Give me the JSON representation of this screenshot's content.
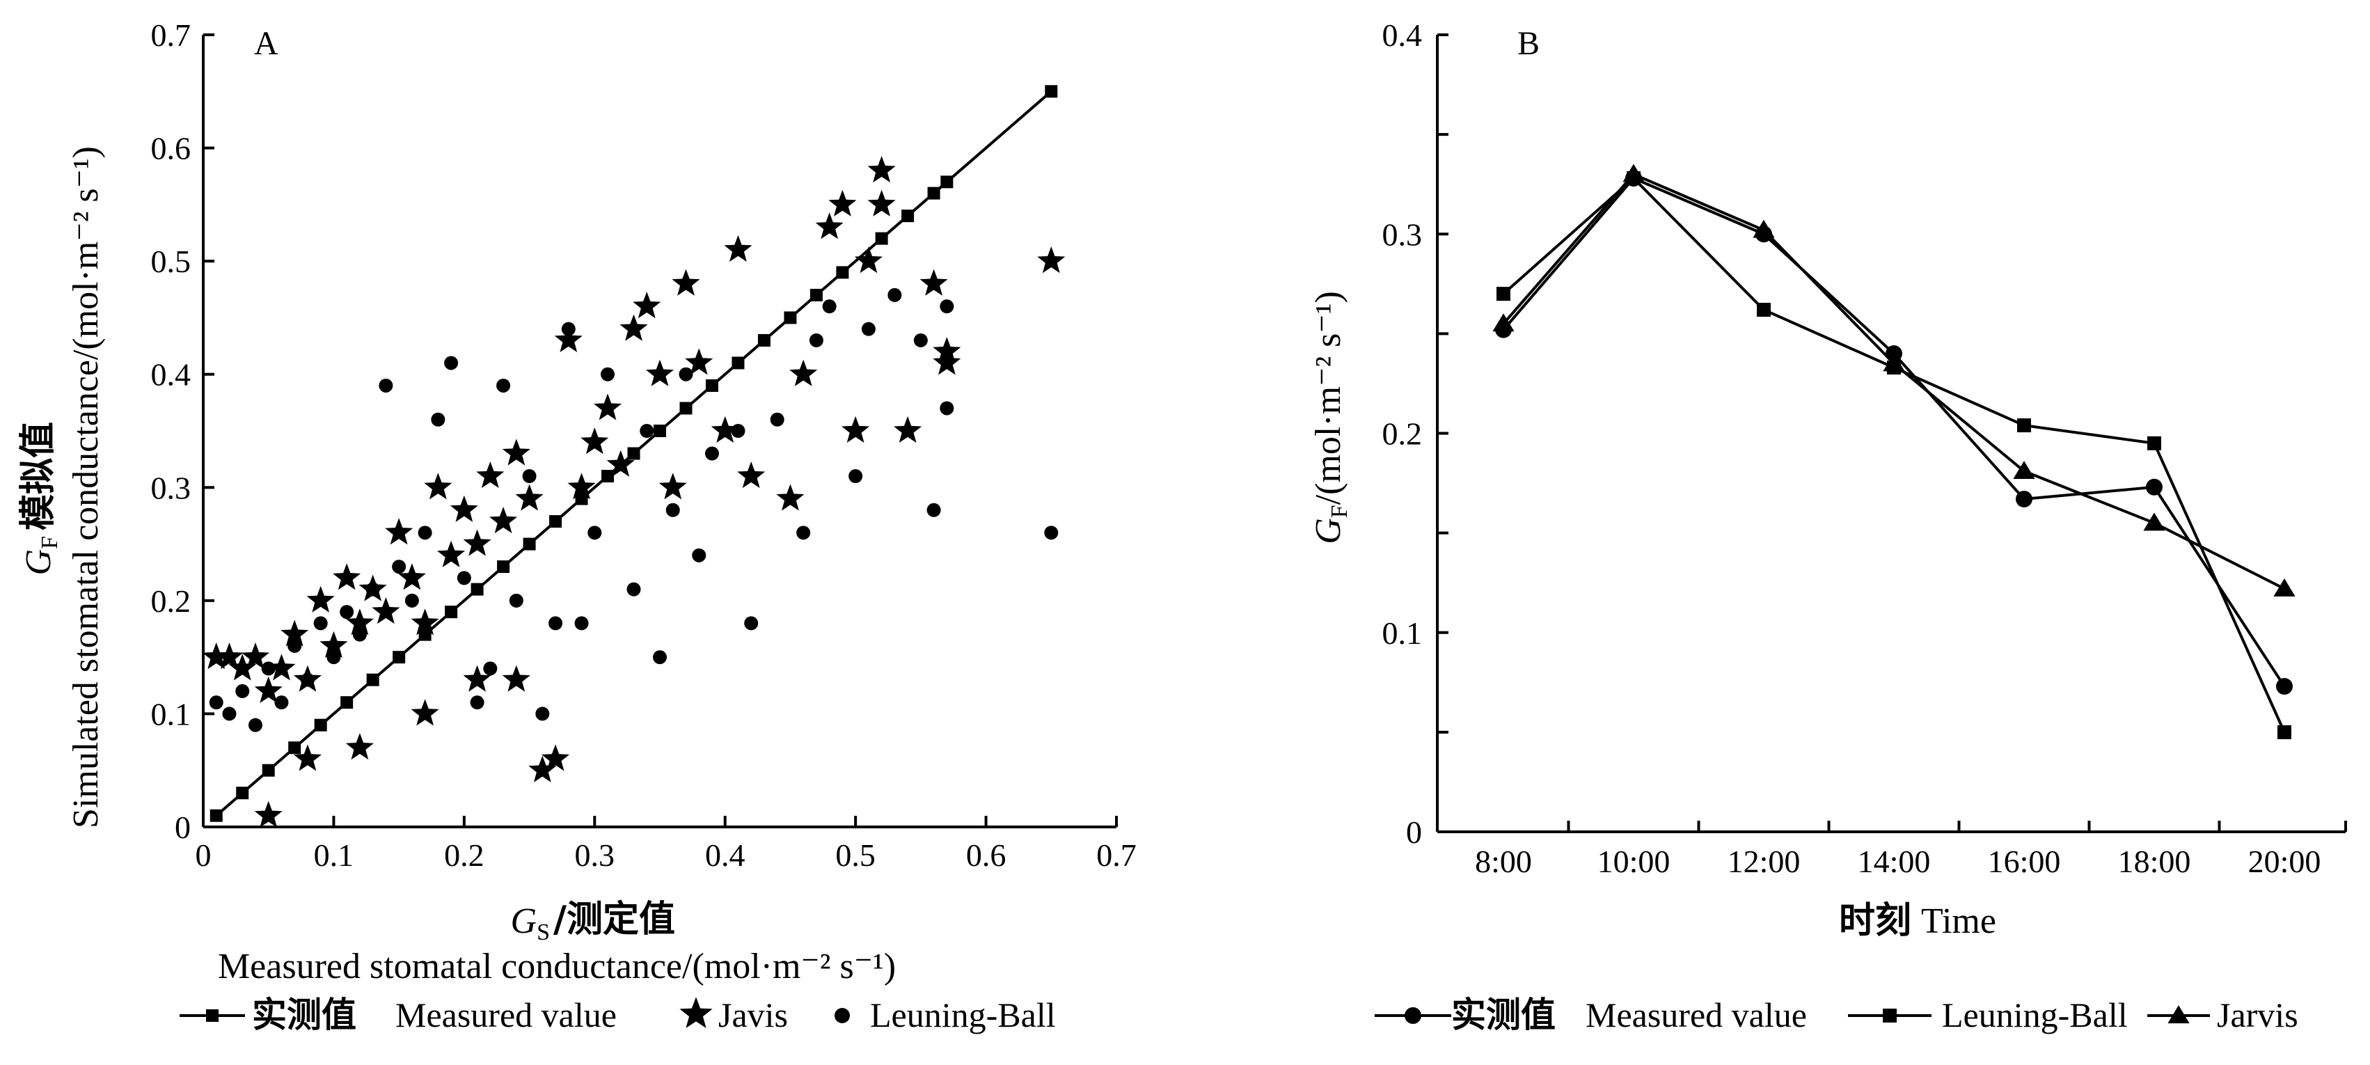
{
  "chart_data": [
    {
      "panel": "A",
      "type": "scatter",
      "title": "",
      "xlabel_symbol": "G",
      "xlabel_sub": "S",
      "xlabel_cn": "/测定值",
      "xlabel_en": "Measured stomatal conductance/(mol·m⁻² s⁻¹)",
      "ylabel_symbol": "G",
      "ylabel_sub": "F",
      "ylabel_cn": "模拟值",
      "ylabel_en": "Simulated stomatal conductance/(mol·m⁻² s⁻¹)",
      "xlim": [
        0,
        0.7
      ],
      "ylim": [
        0,
        0.7
      ],
      "xticks": [
        0,
        0.1,
        0.2,
        0.3,
        0.4,
        0.5,
        0.6,
        0.7
      ],
      "xtick_labels": [
        "0",
        "0.1",
        "0.2",
        "0.3",
        "0.4",
        "0.5",
        "0.6",
        "0.7"
      ],
      "yticks": [
        0,
        0.1,
        0.2,
        0.3,
        0.4,
        0.5,
        0.6,
        0.7
      ],
      "ytick_labels": [
        "0",
        "0.1",
        "0.2",
        "0.3",
        "0.4",
        "0.5",
        "0.6",
        "0.7"
      ],
      "series": [
        {
          "name": "实测值 Measured value",
          "legend_cn": "实测值",
          "legend_en": "Measured value",
          "marker": "square",
          "line": true,
          "points": [
            [
              0.01,
              0.01
            ],
            [
              0.03,
              0.03
            ],
            [
              0.05,
              0.05
            ],
            [
              0.07,
              0.07
            ],
            [
              0.09,
              0.09
            ],
            [
              0.11,
              0.11
            ],
            [
              0.13,
              0.13
            ],
            [
              0.15,
              0.15
            ],
            [
              0.17,
              0.17
            ],
            [
              0.19,
              0.19
            ],
            [
              0.21,
              0.21
            ],
            [
              0.23,
              0.23
            ],
            [
              0.25,
              0.25
            ],
            [
              0.27,
              0.27
            ],
            [
              0.29,
              0.29
            ],
            [
              0.31,
              0.31
            ],
            [
              0.33,
              0.33
            ],
            [
              0.35,
              0.35
            ],
            [
              0.37,
              0.37
            ],
            [
              0.39,
              0.39
            ],
            [
              0.41,
              0.41
            ],
            [
              0.43,
              0.43
            ],
            [
              0.45,
              0.45
            ],
            [
              0.47,
              0.47
            ],
            [
              0.49,
              0.49
            ],
            [
              0.52,
              0.52
            ],
            [
              0.54,
              0.54
            ],
            [
              0.56,
              0.56
            ],
            [
              0.57,
              0.57
            ],
            [
              0.65,
              0.65
            ]
          ]
        },
        {
          "name": "Javis",
          "legend_en": "Javis",
          "marker": "star",
          "line": false,
          "points": [
            [
              0.01,
              0.15
            ],
            [
              0.02,
              0.15
            ],
            [
              0.03,
              0.14
            ],
            [
              0.04,
              0.15
            ],
            [
              0.05,
              0.12
            ],
            [
              0.06,
              0.14
            ],
            [
              0.07,
              0.17
            ],
            [
              0.08,
              0.13
            ],
            [
              0.09,
              0.2
            ],
            [
              0.1,
              0.16
            ],
            [
              0.11,
              0.22
            ],
            [
              0.12,
              0.18
            ],
            [
              0.13,
              0.21
            ],
            [
              0.14,
              0.19
            ],
            [
              0.15,
              0.26
            ],
            [
              0.16,
              0.22
            ],
            [
              0.17,
              0.18
            ],
            [
              0.18,
              0.3
            ],
            [
              0.19,
              0.24
            ],
            [
              0.2,
              0.28
            ],
            [
              0.21,
              0.25
            ],
            [
              0.22,
              0.31
            ],
            [
              0.23,
              0.27
            ],
            [
              0.24,
              0.33
            ],
            [
              0.25,
              0.29
            ],
            [
              0.26,
              0.05
            ],
            [
              0.27,
              0.06
            ],
            [
              0.28,
              0.43
            ],
            [
              0.29,
              0.3
            ],
            [
              0.3,
              0.34
            ],
            [
              0.31,
              0.37
            ],
            [
              0.32,
              0.32
            ],
            [
              0.33,
              0.44
            ],
            [
              0.34,
              0.46
            ],
            [
              0.35,
              0.4
            ],
            [
              0.36,
              0.3
            ],
            [
              0.37,
              0.48
            ],
            [
              0.38,
              0.41
            ],
            [
              0.4,
              0.35
            ],
            [
              0.41,
              0.51
            ],
            [
              0.42,
              0.31
            ],
            [
              0.45,
              0.29
            ],
            [
              0.46,
              0.4
            ],
            [
              0.48,
              0.53
            ],
            [
              0.49,
              0.55
            ],
            [
              0.5,
              0.35
            ],
            [
              0.51,
              0.5
            ],
            [
              0.52,
              0.55
            ],
            [
              0.52,
              0.58
            ],
            [
              0.54,
              0.35
            ],
            [
              0.56,
              0.48
            ],
            [
              0.57,
              0.41
            ],
            [
              0.57,
              0.42
            ],
            [
              0.65,
              0.5
            ],
            [
              0.05,
              0.01
            ],
            [
              0.08,
              0.06
            ],
            [
              0.12,
              0.07
            ],
            [
              0.17,
              0.1
            ],
            [
              0.21,
              0.13
            ],
            [
              0.24,
              0.13
            ]
          ]
        },
        {
          "name": "Leuning-Ball",
          "legend_en": "Leuning-Ball",
          "marker": "circle",
          "line": false,
          "points": [
            [
              0.01,
              0.11
            ],
            [
              0.02,
              0.1
            ],
            [
              0.03,
              0.12
            ],
            [
              0.04,
              0.09
            ],
            [
              0.05,
              0.14
            ],
            [
              0.06,
              0.11
            ],
            [
              0.07,
              0.16
            ],
            [
              0.08,
              0.13
            ],
            [
              0.09,
              0.18
            ],
            [
              0.1,
              0.15
            ],
            [
              0.11,
              0.19
            ],
            [
              0.12,
              0.17
            ],
            [
              0.13,
              0.21
            ],
            [
              0.14,
              0.39
            ],
            [
              0.15,
              0.23
            ],
            [
              0.16,
              0.2
            ],
            [
              0.17,
              0.26
            ],
            [
              0.18,
              0.36
            ],
            [
              0.19,
              0.41
            ],
            [
              0.2,
              0.22
            ],
            [
              0.21,
              0.11
            ],
            [
              0.22,
              0.14
            ],
            [
              0.23,
              0.39
            ],
            [
              0.24,
              0.2
            ],
            [
              0.25,
              0.31
            ],
            [
              0.26,
              0.1
            ],
            [
              0.27,
              0.18
            ],
            [
              0.28,
              0.44
            ],
            [
              0.29,
              0.18
            ],
            [
              0.3,
              0.26
            ],
            [
              0.31,
              0.4
            ],
            [
              0.33,
              0.21
            ],
            [
              0.34,
              0.35
            ],
            [
              0.35,
              0.15
            ],
            [
              0.36,
              0.28
            ],
            [
              0.37,
              0.4
            ],
            [
              0.38,
              0.24
            ],
            [
              0.39,
              0.33
            ],
            [
              0.41,
              0.35
            ],
            [
              0.42,
              0.18
            ],
            [
              0.44,
              0.36
            ],
            [
              0.46,
              0.26
            ],
            [
              0.47,
              0.43
            ],
            [
              0.48,
              0.46
            ],
            [
              0.5,
              0.31
            ],
            [
              0.51,
              0.44
            ],
            [
              0.53,
              0.47
            ],
            [
              0.55,
              0.43
            ],
            [
              0.56,
              0.28
            ],
            [
              0.57,
              0.37
            ],
            [
              0.57,
              0.46
            ],
            [
              0.65,
              0.26
            ]
          ]
        }
      ]
    },
    {
      "panel": "B",
      "type": "line",
      "title": "",
      "xlabel_cn": "时刻",
      "xlabel_en": "Time",
      "ylabel_symbol": "G",
      "ylabel_sub": "F",
      "ylabel_en": "/(mol·m⁻² s⁻¹)",
      "categories": [
        "8:00",
        "10:00",
        "12:00",
        "14:00",
        "16:00",
        "18:00",
        "20:00"
      ],
      "ylim": [
        0,
        0.4
      ],
      "yticks": [
        0,
        0.05,
        0.1,
        0.15,
        0.2,
        0.25,
        0.3,
        0.35,
        0.4
      ],
      "ytick_labels": [
        "0",
        "",
        "0.1",
        "",
        "0.2",
        "",
        "0.3",
        "",
        "0.4"
      ],
      "series": [
        {
          "name": "实测值 Measured value",
          "legend_cn": "实测值",
          "legend_en": "Measured value",
          "marker": "circle",
          "values": [
            0.252,
            0.328,
            0.3,
            0.24,
            0.167,
            0.173,
            0.073
          ]
        },
        {
          "name": "Leuning-Ball",
          "legend_en": "Leuning-Ball",
          "marker": "square",
          "values": [
            0.27,
            0.328,
            0.262,
            0.233,
            0.204,
            0.195,
            0.05
          ]
        },
        {
          "name": "Jarvis",
          "legend_en": "Jarvis",
          "marker": "triangle",
          "values": [
            0.255,
            0.33,
            0.302,
            0.235,
            0.181,
            0.155,
            0.122
          ]
        }
      ]
    }
  ]
}
